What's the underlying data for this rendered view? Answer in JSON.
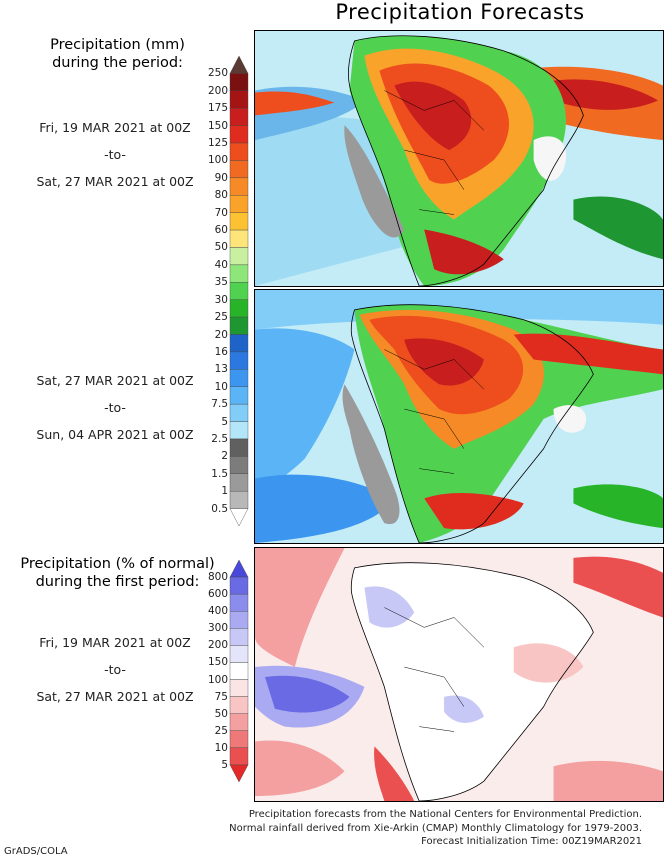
{
  "title": "Precipitation Forecasts",
  "legend_mm": {
    "title_line1": "Precipitation (mm)",
    "title_line2": "during the period:",
    "levels": [
      "250",
      "200",
      "175",
      "150",
      "125",
      "100",
      "90",
      "80",
      "70",
      "60",
      "50",
      "40",
      "35",
      "30",
      "25",
      "20",
      "16",
      "13",
      "10",
      "7.5",
      "5",
      "2.5",
      "2",
      "1.5",
      "1",
      "0.5"
    ],
    "colors": [
      "#5c3a34",
      "#7a1010",
      "#a51414",
      "#c81e1e",
      "#e02c1e",
      "#ee4d1e",
      "#f06a22",
      "#f58a26",
      "#f9a32a",
      "#fcc234",
      "#fde57a",
      "#c8f0a0",
      "#8ee67a",
      "#50d250",
      "#28b428",
      "#1e9632",
      "#1e64c8",
      "#2a78e0",
      "#3c96f0",
      "#5ab4f5",
      "#82cdf8",
      "#b4e6fa",
      "#606060",
      "#7c7c7c",
      "#9a9a9a",
      "#b8b8b8",
      "#ffffff"
    ]
  },
  "legend_pct": {
    "title_line1": "Precipitation (% of normal)",
    "title_line2": "during the first period:",
    "levels": [
      "800",
      "600",
      "400",
      "300",
      "200",
      "150",
      "100",
      "75",
      "50",
      "25",
      "10",
      "5"
    ],
    "colors": [
      "#4a48d8",
      "#6a6ae4",
      "#8c8cec",
      "#aaaaf2",
      "#c8c8f6",
      "#e4e4fa",
      "#ffffff",
      "#fbe4e4",
      "#f8c4c4",
      "#f4a0a0",
      "#ef7878",
      "#ea5050",
      "#e22a2a"
    ]
  },
  "periods": [
    {
      "start": "Fri, 19 MAR 2021 at 00Z",
      "sep": "-to-",
      "end": "Sat, 27 MAR 2021 at 00Z"
    },
    {
      "start": "Sat, 27 MAR 2021 at 00Z",
      "sep": "-to-",
      "end": "Sun, 04 APR 2021 at 00Z"
    },
    {
      "start": "Fri, 19 MAR 2021 at 00Z",
      "sep": "-to-",
      "end": "Sat, 27 MAR 2021 at 00Z"
    }
  ],
  "credits": {
    "line1": "Precipitation forecasts from the National Centers for Environmental Prediction.",
    "line2": "Normal rainfall derived from Xie-Arkin (CMAP) Monthly Climatology for 1979-2003.",
    "line3": "Forecast Initialization Time: 00Z19MAR2021"
  },
  "software_label": "GrADS/COLA"
}
